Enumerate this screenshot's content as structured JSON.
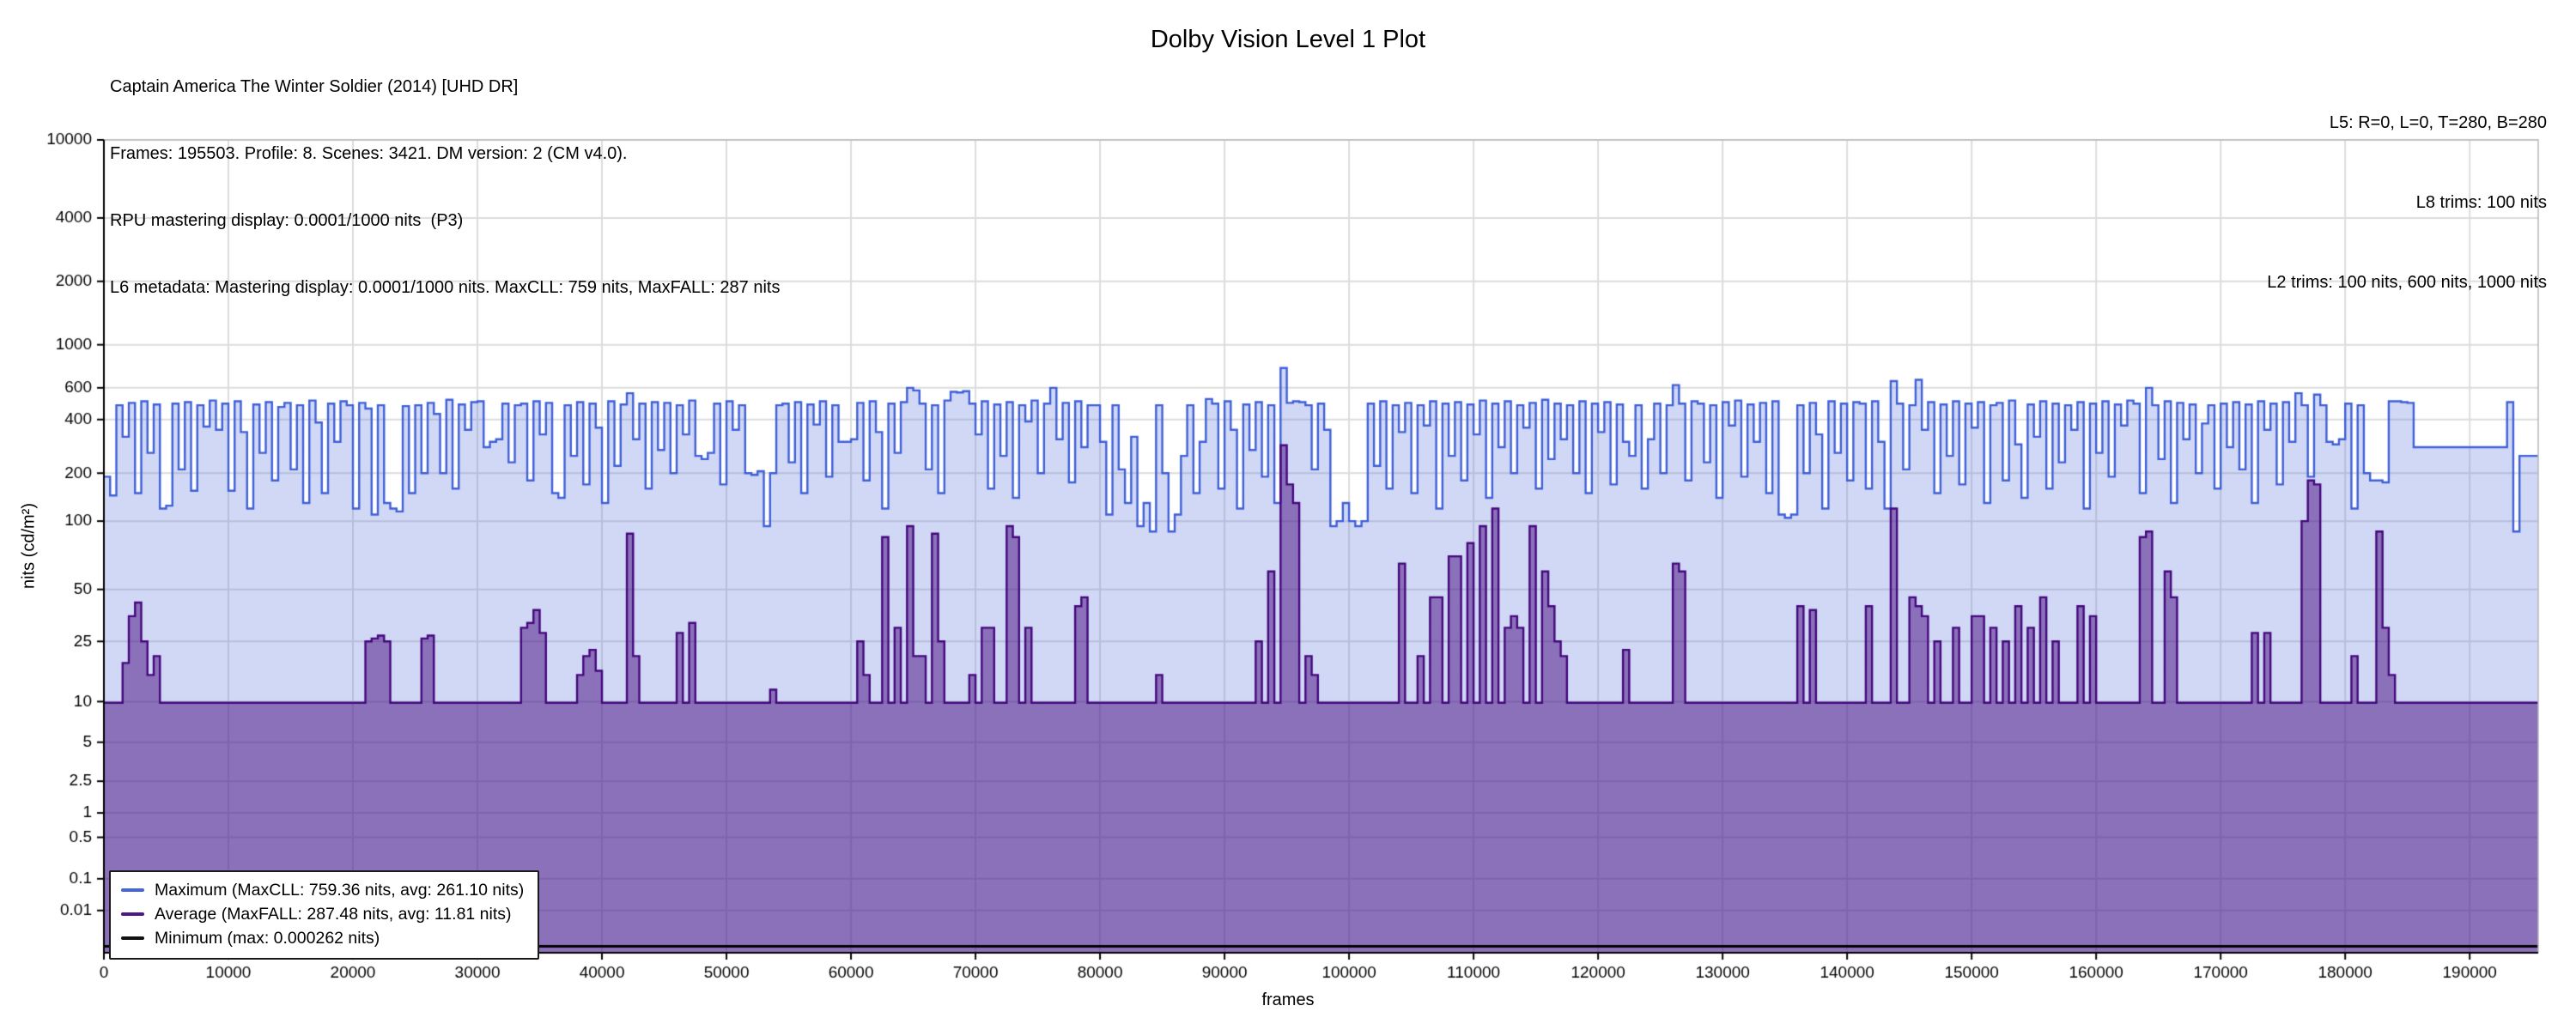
{
  "title": "Dolby Vision Level 1 Plot",
  "header_left": {
    "line1": "Captain America The Winter Soldier (2014) [UHD DR]",
    "line2": "Frames: 195503. Profile: 8. Scenes: 3421. DM version: 2 (CM v4.0).",
    "line3": "RPU mastering display: 0.0001/1000 nits  (P3)",
    "line4": "L6 metadata: Mastering display: 0.0001/1000 nits. MaxCLL: 759 nits, MaxFALL: 287 nits"
  },
  "header_right": {
    "line1": "L5: R=0, L=0, T=280, B=280",
    "line2": "L8 trims: 100 nits",
    "line3": "L2 trims: 100 nits, 600 nits, 1000 nits"
  },
  "axes": {
    "x_label": "frames",
    "y_label": "nits (cd/m²)"
  },
  "legend": {
    "items": [
      {
        "label": "Maximum (MaxCLL: 759.36 nits, avg: 261.10 nits)",
        "color": "#4766d6"
      },
      {
        "label": "Average (MaxFALL: 287.48 nits, avg: 11.81 nits)",
        "color": "#4b1884"
      },
      {
        "label": "Minimum (max: 0.000262 nits)",
        "color": "#111111"
      }
    ]
  },
  "colors": {
    "background": "#ffffff",
    "grid": "#dcdcdc",
    "spine_dark": "#000000",
    "spine_light": "#b8b8b8",
    "max_line": "#3f5fd7",
    "max_fill": "rgba(66,98,215,0.25)",
    "avg_line": "#45087d",
    "avg_fill": "rgba(71,9,128,0.5)",
    "min_line": "#000000"
  },
  "chart_data": {
    "type": "area",
    "title": "Dolby Vision Level 1 Plot",
    "xlabel": "frames",
    "ylabel": "nits (cd/m²)",
    "x_max": 195503,
    "x_step": 500,
    "x_ticks": [
      0,
      10000,
      20000,
      30000,
      40000,
      50000,
      60000,
      70000,
      80000,
      90000,
      100000,
      110000,
      120000,
      130000,
      140000,
      150000,
      160000,
      170000,
      180000,
      190000
    ],
    "y_ticks": [
      10000,
      4000,
      2000,
      1000,
      600,
      400,
      200,
      100,
      50,
      25,
      10,
      5,
      2.5,
      1,
      0.5,
      0.1,
      0.01
    ],
    "y_scale_anchors": [
      [
        10000,
        0
      ],
      [
        4000,
        0.096
      ],
      [
        2000,
        0.174
      ],
      [
        1000,
        0.252
      ],
      [
        600,
        0.305
      ],
      [
        400,
        0.344
      ],
      [
        200,
        0.41
      ],
      [
        100,
        0.469
      ],
      [
        50,
        0.553
      ],
      [
        25,
        0.617
      ],
      [
        10,
        0.691
      ],
      [
        5,
        0.741
      ],
      [
        2.5,
        0.789
      ],
      [
        1,
        0.828
      ],
      [
        0.5,
        0.858
      ],
      [
        0.1,
        0.909
      ],
      [
        0.01,
        0.948
      ],
      [
        0.0001,
        1.0
      ]
    ],
    "grid": true,
    "legend_position": "lower-left",
    "series": [
      {
        "name": "Maximum",
        "stat_maxcll": 759.36,
        "stat_avg": 261.1,
        "values": [
          190,
          145,
          480,
          320,
          495,
          150,
          505,
          260,
          485,
          120,
          125,
          490,
          210,
          500,
          155,
          480,
          365,
          510,
          350,
          490,
          155,
          505,
          340,
          120,
          485,
          260,
          500,
          180,
          470,
          495,
          210,
          480,
          130,
          510,
          385,
          150,
          490,
          300,
          505,
          480,
          120,
          495,
          460,
          110,
          480,
          130,
          120,
          115,
          475,
          150,
          480,
          200,
          495,
          430,
          200,
          515,
          160,
          485,
          350,
          500,
          505,
          280,
          300,
          310,
          490,
          230,
          480,
          490,
          180,
          505,
          330,
          495,
          150,
          140,
          480,
          250,
          500,
          170,
          490,
          360,
          130,
          505,
          220,
          485,
          560,
          310,
          490,
          160,
          500,
          270,
          495,
          200,
          480,
          330,
          510,
          250,
          240,
          260,
          490,
          170,
          505,
          350,
          480,
          200,
          195,
          205,
          95,
          200,
          480,
          490,
          230,
          500,
          150,
          485,
          375,
          505,
          190,
          480,
          300,
          300,
          310,
          495,
          180,
          505,
          340,
          120,
          490,
          260,
          500,
          600,
          580,
          490,
          210,
          480,
          150,
          510,
          570,
          565,
          575,
          490,
          330,
          505,
          160,
          485,
          250,
          500,
          140,
          480,
          390,
          510,
          200,
          490,
          600,
          310,
          495,
          175,
          505,
          280,
          480,
          480,
          300,
          110,
          480,
          210,
          130,
          320,
          95,
          130,
          90,
          480,
          200,
          90,
          110,
          250,
          480,
          150,
          300,
          520,
          490,
          160,
          505,
          350,
          120,
          485,
          270,
          500,
          190,
          480,
          130,
          759,
          495,
          505,
          500,
          480,
          210,
          490,
          350,
          95,
          100,
          130,
          100,
          95,
          100,
          490,
          220,
          505,
          160,
          480,
          340,
          495,
          150,
          480,
          370,
          505,
          120,
          490,
          250,
          500,
          180,
          485,
          330,
          510,
          140,
          490,
          280,
          505,
          200,
          480,
          360,
          495,
          160,
          515,
          240,
          490,
          310,
          480,
          200,
          505,
          150,
          490,
          340,
          500,
          170,
          485,
          300,
          250,
          480,
          160,
          310,
          490,
          200,
          480,
          620,
          490,
          180,
          505,
          490,
          230,
          480,
          140,
          500,
          370,
          510,
          190,
          485,
          300,
          495,
          150,
          505,
          110,
          105,
          110,
          480,
          200,
          495,
          330,
          120,
          505,
          260,
          490,
          180,
          500,
          490,
          160,
          505,
          300,
          120,
          650,
          490,
          210,
          480,
          660,
          350,
          500,
          150,
          485,
          250,
          505,
          170,
          490,
          360,
          500,
          130,
          480,
          495,
          180,
          510,
          290,
          140,
          485,
          320,
          505,
          160,
          490,
          230,
          480,
          350,
          500,
          120,
          490,
          260,
          505,
          190,
          485,
          370,
          510,
          490,
          150,
          600,
          480,
          240,
          505,
          130,
          495,
          310,
          485,
          200,
          380,
          480,
          160,
          490,
          280,
          500,
          210,
          485,
          130,
          505,
          350,
          490,
          170,
          500,
          300,
          560,
          480,
          190,
          550,
          480,
          300,
          290,
          310,
          490,
          120,
          480,
          200,
          180,
          180,
          175,
          505,
          505,
          500,
          495,
          280,
          280,
          280,
          280,
          280,
          280,
          280,
          280,
          280,
          280,
          280,
          280,
          280,
          280,
          280,
          500,
          90,
          250,
          250,
          250,
          250
        ]
      },
      {
        "name": "Average",
        "stat_maxfall": 287.48,
        "stat_avg": 11.81,
        "baseline": 9.8,
        "spikes": {
          "3": 18,
          "4": 35,
          "5": 42,
          "6": 25,
          "7": 15,
          "8": 20,
          "42": 25,
          "43": 26,
          "44": 27,
          "45": 25,
          "51": 26,
          "52": 27,
          "67": 30,
          "68": 32,
          "69": 38,
          "70": 28,
          "76": 15,
          "77": 20,
          "78": 22,
          "79": 16,
          "84": 88,
          "85": 20,
          "92": 28,
          "94": 32,
          "107": 12,
          "121": 25,
          "122": 15,
          "125": 85,
          "127": 30,
          "129": 95,
          "130": 20,
          "131": 20,
          "133": 88,
          "134": 25,
          "139": 15,
          "141": 30,
          "142": 30,
          "145": 95,
          "146": 85,
          "148": 30,
          "156": 40,
          "157": 45,
          "169": 15,
          "185": 25,
          "187": 60,
          "189": 287,
          "190": 170,
          "191": 130,
          "193": 20,
          "194": 15,
          "208": 65,
          "211": 20,
          "213": 45,
          "214": 45,
          "216": 70,
          "217": 70,
          "219": 80,
          "221": 95,
          "223": 120,
          "225": 30,
          "226": 35,
          "227": 30,
          "229": 95,
          "231": 60,
          "232": 40,
          "233": 25,
          "234": 20,
          "244": 22,
          "252": 65,
          "253": 60,
          "272": 40,
          "274": 38,
          "283": 40,
          "287": 120,
          "290": 45,
          "291": 40,
          "292": 35,
          "294": 25,
          "297": 30,
          "300": 35,
          "301": 35,
          "303": 30,
          "305": 25,
          "307": 40,
          "309": 30,
          "311": 45,
          "313": 25,
          "317": 40,
          "319": 35,
          "327": 85,
          "328": 90,
          "331": 60,
          "332": 45,
          "345": 28,
          "347": 28,
          "353": 100,
          "354": 180,
          "355": 170,
          "361": 20,
          "365": 90,
          "366": 30,
          "367": 15
        }
      },
      {
        "name": "Minimum",
        "stat_max": 0.000262,
        "constant": 0.0002
      }
    ]
  }
}
